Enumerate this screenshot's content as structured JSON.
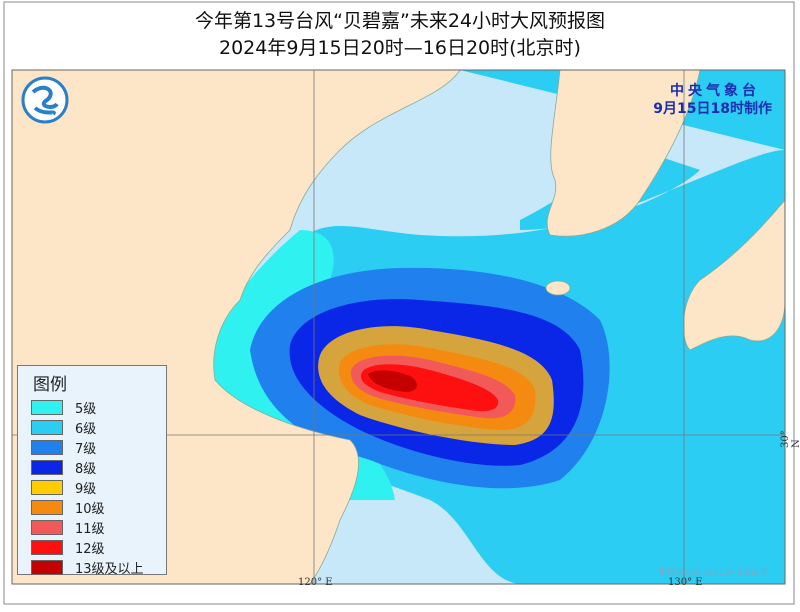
{
  "title": "今年第13号台风“贝碧嘉”未来24小时大风预报图",
  "subtitle": "2024年9月15日20时—16日20时(北京时)",
  "agency": "中央气象台",
  "issued": "9月15日18时制作",
  "legend": {
    "title": "图例",
    "items": [
      {
        "label": "5级",
        "color": "#2ff2f0"
      },
      {
        "label": "6级",
        "color": "#2ccdf2"
      },
      {
        "label": "7级",
        "color": "#1f80ee"
      },
      {
        "label": "8级",
        "color": "#0a26e6"
      },
      {
        "label": "9级",
        "color": "#ffcc00"
      },
      {
        "label": "10级",
        "color": "#f58a10"
      },
      {
        "label": "11级",
        "color": "#f25a5a"
      },
      {
        "label": "12级",
        "color": "#ff1010"
      },
      {
        "label": "13级及以上",
        "color": "#c40000"
      }
    ]
  },
  "axes": {
    "lon_ticks": [
      "120° E",
      "130° E"
    ],
    "lat_ticks": [
      "30° N"
    ]
  },
  "colors": {
    "land": "#fde5c8",
    "sea": "#c6e8f8",
    "nine_level_map": "#d6a43c"
  },
  "watermark": "审图号:GS (2019) 3082号"
}
